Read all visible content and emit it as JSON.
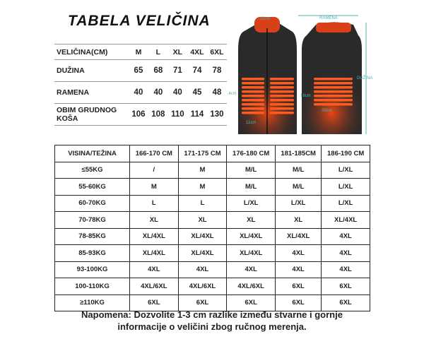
{
  "title": "TABELA VELIČINA",
  "size_table": {
    "headers": [
      "VELIČINA(CM)",
      "M",
      "L",
      "XL",
      "4XL",
      "6XL"
    ],
    "rows": [
      {
        "label": "DUŽINA",
        "values": [
          "65",
          "68",
          "71",
          "74",
          "78"
        ]
      },
      {
        "label": "RAMENA",
        "values": [
          "40",
          "40",
          "40",
          "45",
          "48"
        ]
      },
      {
        "label": "OBIM GRUDNOG KOŠA",
        "values": [
          "106",
          "108",
          "110",
          "114",
          "130"
        ]
      }
    ]
  },
  "image_labels": {
    "collar": "22cm",
    "shoulder": "RAMENA",
    "length": "DUŽINA",
    "front_pad_height": "14cm",
    "front_pad_width": "11cm",
    "back_pad_height": "16cm",
    "back_pad_width": "29cm"
  },
  "colors": {
    "heater": "#ff5a1f",
    "vest": "#2a2a2a",
    "measure": "#4fb3b0"
  },
  "fit_table": {
    "headers": [
      "VISINA/TEŽINA",
      "166-170 CM",
      "171-175 CM",
      "176-180 CM",
      "181-185CM",
      "186-190 CM"
    ],
    "rows": [
      {
        "label": "≤55KG",
        "values": [
          "/",
          "M",
          "M/L",
          "M/L",
          "L/XL"
        ]
      },
      {
        "label": "55-60KG",
        "values": [
          "M",
          "M",
          "M/L",
          "M/L",
          "L/XL"
        ]
      },
      {
        "label": "60-70KG",
        "values": [
          "L",
          "L",
          "L/XL",
          "L/XL",
          "L/XL"
        ]
      },
      {
        "label": "70-78KG",
        "values": [
          "XL",
          "XL",
          "XL",
          "XL",
          "XL/4XL"
        ]
      },
      {
        "label": "78-85KG",
        "values": [
          "XL/4XL",
          "XL/4XL",
          "XL/4XL",
          "XL/4XL",
          "4XL"
        ]
      },
      {
        "label": "85-93KG",
        "values": [
          "XL/4XL",
          "XL/4XL",
          "XL/4XL",
          "4XL",
          "4XL"
        ]
      },
      {
        "label": "93-100KG",
        "values": [
          "4XL",
          "4XL",
          "4XL",
          "4XL",
          "4XL"
        ]
      },
      {
        "label": "100-110KG",
        "values": [
          "4XL/6XL",
          "4XL/6XL",
          "4XL/6XL",
          "6XL",
          "6XL"
        ]
      },
      {
        "label": "≥110KG",
        "values": [
          "6XL",
          "6XL",
          "6XL",
          "6XL",
          "6XL"
        ]
      }
    ]
  },
  "note": "Napomena: Dozvolite 1-3 cm razlike između stvarne i gornje informacije o veličini zbog ručnog merenja."
}
